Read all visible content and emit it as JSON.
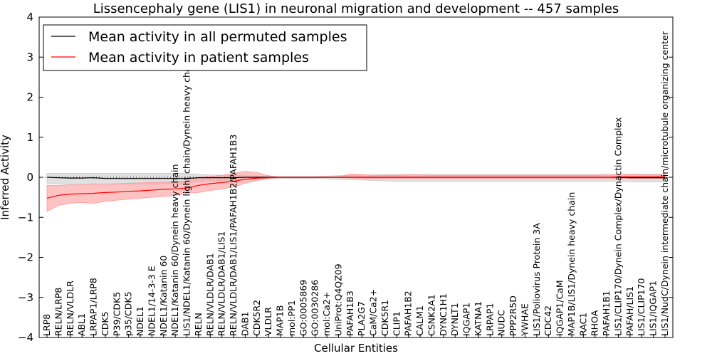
{
  "chart_data": {
    "type": "line",
    "title": "Lissencephaly gene (LIS1) in neuronal migration and development -- 457 samples",
    "xlabel": "Cellular Entities",
    "ylabel": "Inferred Activity",
    "ylim": [
      -4,
      4
    ],
    "yticks": [
      "−4",
      "−3",
      "−2",
      "−1",
      "0",
      "1",
      "2",
      "3",
      "4"
    ],
    "legend_position": "top-left",
    "categories": [
      "LRP8",
      "RELN/LRP8",
      "RELN/VLDLR",
      "ABL1",
      "LRPAP1/LRP8",
      "CDK5",
      "P39/CDK5",
      "p35/CDK5",
      "NDEL1",
      "NDEL1/14-3-3 E",
      "NDEL1/Katanin 60",
      "NDEL1/Katanin 60/Dynein heavy chain",
      "LIS1/NDEL1/Katanin 60/Dynein light chain/Dynein heavy chain",
      "RELN",
      "RELN/VLDLR/DAB1",
      "RELN/VLDLR/DAB1/LIS1",
      "RELN/VLDLR/DAB1/LIS1/PAFAH1B2/PAFAH1B3",
      "DAB1",
      "CDK5R2",
      "VLDLR",
      "MAP1B",
      "mol:PP1",
      "GO:0005869",
      "GO:0030286",
      "mol:Ca2+",
      "UniProt:Q4QZ09",
      "PAFAH1B3",
      "PLA2G7",
      "CaM/Ca2+",
      "CDK5R1",
      "CLIP1",
      "PAFAH1B2",
      "CALM1",
      "CSNK2A1",
      "DYNC1H1",
      "DYNLT1",
      "IQGAP1",
      "KATNA1",
      "LRPAP1",
      "NUDC",
      "PPP2R5D",
      "YWHAE",
      "LIS1/Poliovirus Protein 3A",
      "CDC42",
      "IQGAP1/CaM",
      "MAP1B/LIS1/Dynein heavy chain",
      "RAC1",
      "RHOA",
      "PAFAH1B1",
      "LIS1/CLIP170/Dynein Complex/Dynactin Complex",
      "PAFAH/LIS1",
      "LIS1/CLIP170",
      "LIS1/IQGAP1",
      "LIS1/NudC/Dynein intermediate chain/microtubule organizing center"
    ],
    "series": [
      {
        "name": "Mean activity in all permuted samples",
        "color": "#000000",
        "band_color": "#c8c8c8",
        "values": [
          0.0,
          -0.01,
          -0.02,
          -0.02,
          -0.01,
          -0.03,
          -0.03,
          -0.03,
          -0.03,
          -0.03,
          -0.03,
          -0.03,
          -0.03,
          -0.01,
          -0.01,
          -0.01,
          -0.01,
          0.0,
          0.0,
          0.0,
          0.0,
          0.0,
          0.0,
          0.0,
          0.0,
          0.0,
          0.0,
          0.0,
          0.0,
          0.0,
          0.0,
          0.0,
          0.0,
          0.0,
          0.0,
          0.0,
          0.0,
          0.0,
          0.0,
          0.0,
          0.0,
          0.0,
          0.0,
          0.0,
          0.0,
          0.0,
          0.0,
          0.0,
          0.0,
          0.0,
          -0.01,
          -0.01,
          -0.01,
          -0.01
        ],
        "lower": [
          -0.15,
          -0.16,
          -0.17,
          -0.17,
          -0.16,
          -0.17,
          -0.17,
          -0.17,
          -0.17,
          -0.16,
          -0.16,
          -0.16,
          -0.16,
          -0.1,
          -0.09,
          -0.08,
          -0.07,
          -0.06,
          -0.04,
          -0.03,
          -0.03,
          -0.03,
          -0.03,
          -0.03,
          -0.04,
          -0.05,
          -0.06,
          -0.07,
          -0.08,
          -0.09,
          -0.1,
          -0.1,
          -0.1,
          -0.1,
          -0.1,
          -0.1,
          -0.1,
          -0.1,
          -0.1,
          -0.1,
          -0.1,
          -0.1,
          -0.1,
          -0.1,
          -0.1,
          -0.1,
          -0.1,
          -0.1,
          -0.1,
          -0.1,
          -0.11,
          -0.11,
          -0.11,
          -0.11
        ],
        "upper": [
          0.1,
          0.1,
          0.1,
          0.1,
          0.1,
          0.1,
          0.1,
          0.1,
          0.1,
          0.1,
          0.1,
          0.1,
          0.1,
          0.07,
          0.06,
          0.05,
          0.05,
          0.04,
          0.03,
          0.02,
          0.02,
          0.02,
          0.02,
          0.02,
          0.03,
          0.04,
          0.05,
          0.06,
          0.06,
          0.07,
          0.07,
          0.07,
          0.07,
          0.07,
          0.07,
          0.07,
          0.07,
          0.07,
          0.07,
          0.07,
          0.07,
          0.07,
          0.07,
          0.07,
          0.07,
          0.07,
          0.07,
          0.07,
          0.07,
          0.07,
          0.08,
          0.08,
          0.08,
          0.08
        ]
      },
      {
        "name": "Mean activity in patient samples",
        "color": "#ff0000",
        "band_color": "#ff9a9a",
        "values": [
          -0.52,
          -0.45,
          -0.42,
          -0.41,
          -0.4,
          -0.38,
          -0.37,
          -0.35,
          -0.34,
          -0.32,
          -0.3,
          -0.29,
          -0.27,
          -0.2,
          -0.16,
          -0.13,
          -0.1,
          -0.05,
          -0.02,
          -0.01,
          0.0,
          0.0,
          0.0,
          0.0,
          0.0,
          0.0,
          0.0,
          0.0,
          0.0,
          0.0,
          0.0,
          0.0,
          0.0,
          0.0,
          0.0,
          0.0,
          0.0,
          0.0,
          0.0,
          0.0,
          0.0,
          0.0,
          0.0,
          0.0,
          0.0,
          0.0,
          0.0,
          0.0,
          0.0,
          0.01,
          0.01,
          0.01,
          0.01,
          0.01
        ],
        "lower": [
          -0.85,
          -0.7,
          -0.65,
          -0.63,
          -0.65,
          -0.6,
          -0.57,
          -0.55,
          -0.52,
          -0.5,
          -0.48,
          -0.45,
          -0.4,
          -0.38,
          -0.33,
          -0.29,
          -0.24,
          -0.15,
          -0.08,
          -0.03,
          -0.01,
          -0.01,
          -0.01,
          -0.01,
          -0.01,
          -0.01,
          -0.02,
          -0.03,
          -0.03,
          -0.03,
          -0.03,
          -0.03,
          -0.03,
          -0.03,
          -0.03,
          -0.03,
          -0.03,
          -0.03,
          -0.03,
          -0.03,
          -0.03,
          -0.03,
          -0.03,
          -0.03,
          -0.03,
          -0.03,
          -0.03,
          -0.03,
          -0.03,
          -0.03,
          -0.03,
          -0.03,
          -0.03,
          -0.03
        ],
        "upper": [
          -0.2,
          -0.2,
          -0.19,
          -0.19,
          -0.17,
          -0.17,
          -0.16,
          -0.15,
          -0.14,
          -0.13,
          -0.12,
          -0.1,
          -0.09,
          0.0,
          0.02,
          0.05,
          0.1,
          0.15,
          0.12,
          0.04,
          0.01,
          0.01,
          0.01,
          0.01,
          0.01,
          0.01,
          0.08,
          0.07,
          0.05,
          0.05,
          0.05,
          0.06,
          0.06,
          0.05,
          0.05,
          0.05,
          0.05,
          0.05,
          0.05,
          0.05,
          0.05,
          0.05,
          0.05,
          0.05,
          0.05,
          0.05,
          0.05,
          0.05,
          0.06,
          0.07,
          0.07,
          0.06,
          0.06,
          0.06
        ]
      }
    ]
  }
}
